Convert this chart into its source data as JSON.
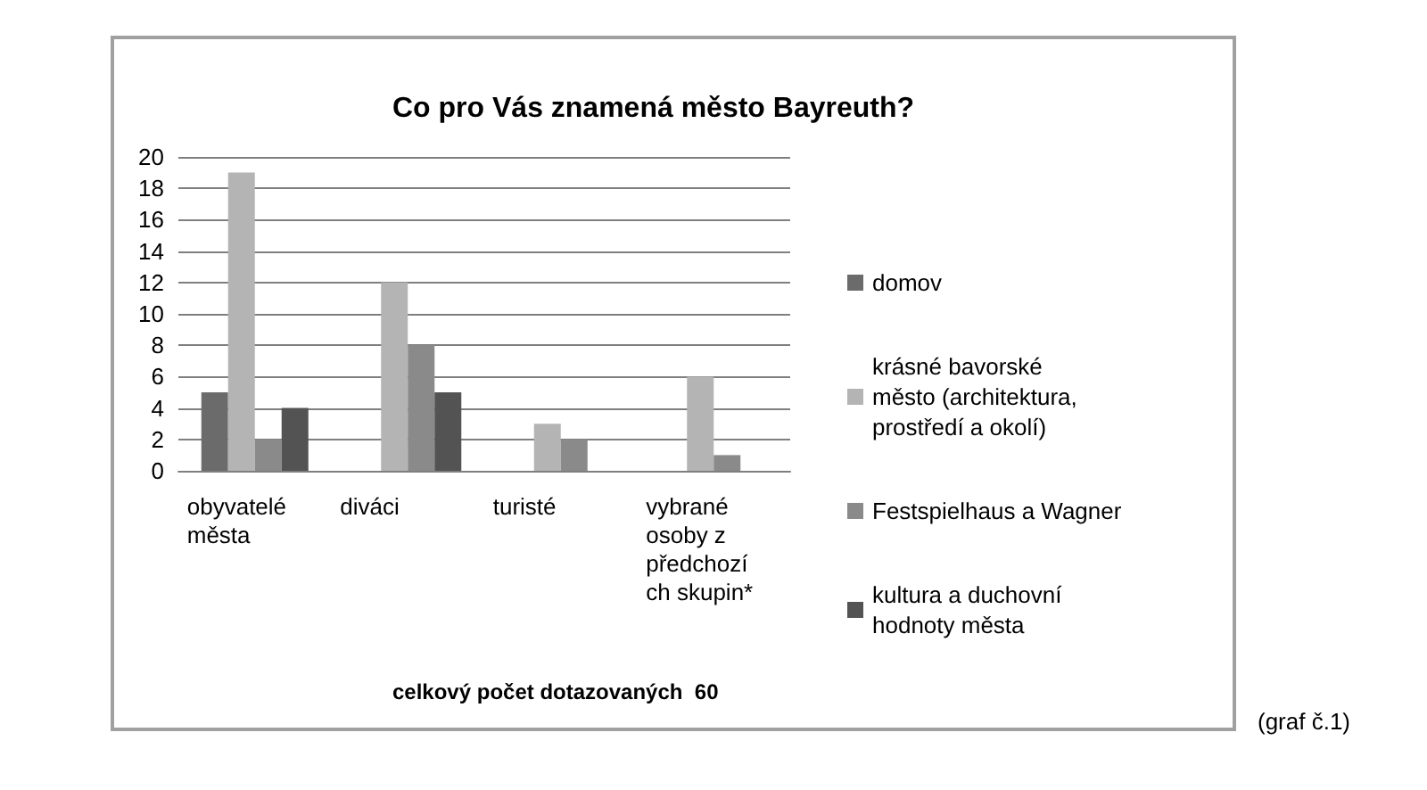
{
  "chart_data": {
    "type": "bar",
    "title": "Co pro Vás znamená město Bayreuth?",
    "categories": [
      "obyvatelé města",
      "diváci",
      "turisté",
      "vybrané osoby z předchozích skupin*"
    ],
    "series": [
      {
        "name": "domov",
        "color": "#6b6b6b",
        "values": [
          5,
          0,
          0,
          0
        ]
      },
      {
        "name": "krásné bavorské město (architektura, prostředí a okolí)",
        "color": "#b4b4b4",
        "values": [
          19,
          12,
          3,
          6
        ]
      },
      {
        "name": "Festspielhaus a Wagner",
        "color": "#8a8a8a",
        "values": [
          2,
          8,
          2,
          1
        ]
      },
      {
        "name": "kultura a duchovní hodnoty města",
        "color": "#535353",
        "values": [
          4,
          5,
          0,
          0
        ]
      }
    ],
    "ylim": [
      0,
      20
    ],
    "yticks": [
      0,
      2,
      4,
      6,
      8,
      10,
      12,
      14,
      16,
      18,
      20
    ],
    "grid": "y",
    "legend": "right",
    "annotations": [
      "celkový počet dotazovaných  60",
      "(graf č.1)"
    ]
  }
}
